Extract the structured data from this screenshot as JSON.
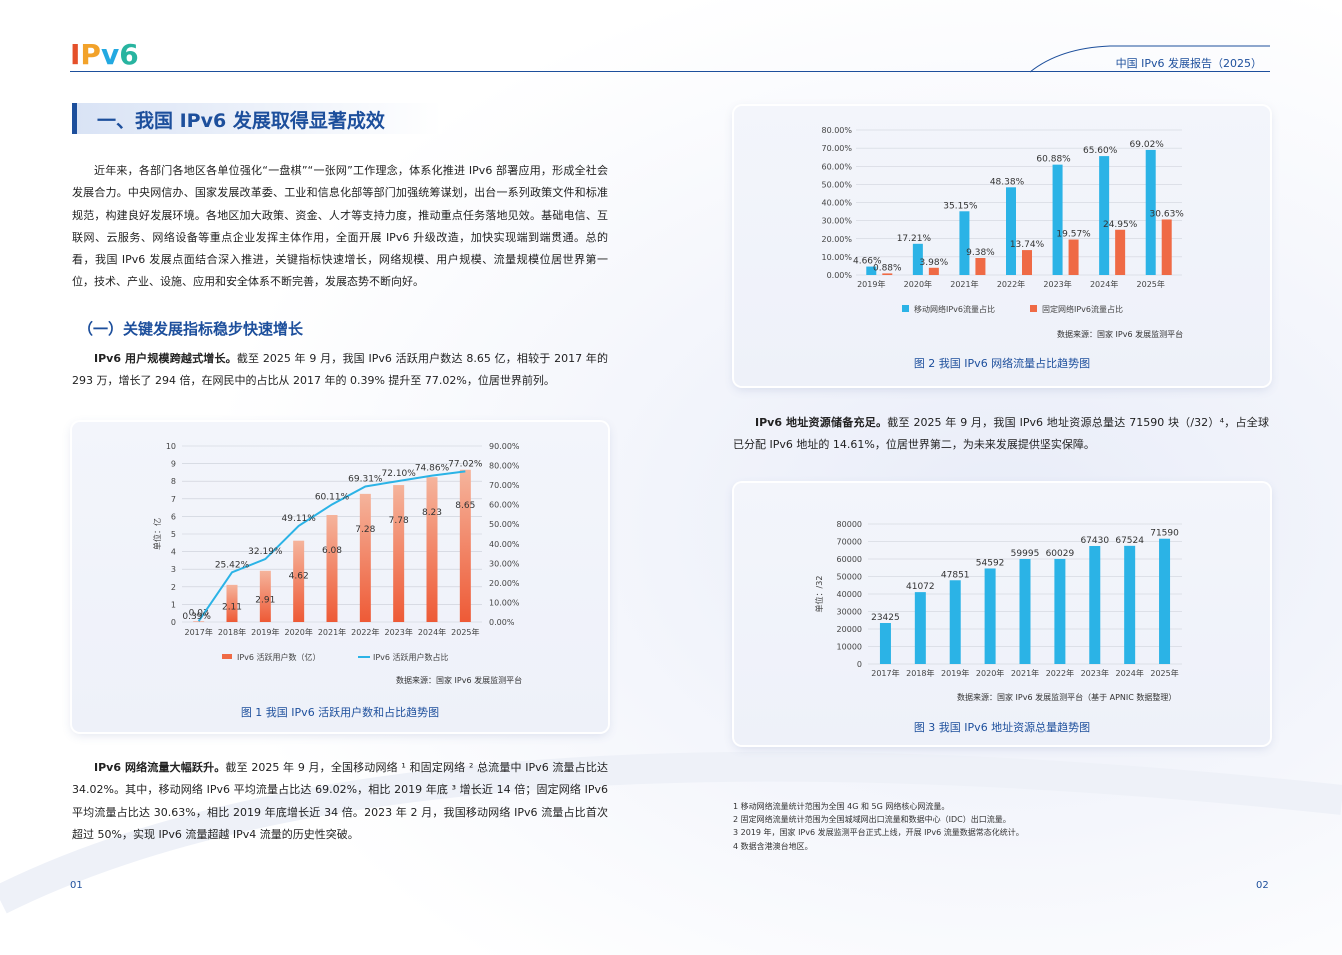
{
  "header": {
    "logo": [
      "I",
      "P",
      "v",
      "6"
    ],
    "report_title": "中国 IPv6 发展报告（2025）"
  },
  "section": {
    "title": "一、我国 IPv6 发展取得显著成效"
  },
  "intro": "近年来，各部门各地区各单位强化“一盘棋”“一张网”工作理念，体系化推进 IPv6 部署应用，形成全社会发展合力。中央网信办、国家发展改革委、工业和信息化部等部门加强统筹谋划，出台一系列政策文件和标准规范，构建良好发展环境。各地区加大政策、资金、人才等支持力度，推动重点任务落地见效。基础电信、互联网、云服务、网络设备等重点企业发挥主体作用，全面开展 IPv6 升级改造，加快实现端到端贯通。总的看，我国 IPv6 发展点面结合深入推进，关键指标快速增长，网络规模、用户规模、流量规模位居世界第一位，技术、产业、设施、应用和安全体系不断完善，发展态势不断向好。",
  "subsection": {
    "title": "（一）关键发展指标稳步快速增长"
  },
  "para_users": {
    "lead": "IPv6 用户规模跨越式增长。",
    "text": "截至 2025 年 9 月，我国 IPv6 活跃用户数达 8.65 亿，相较于 2017 年的 293 万，增长了 294 倍，在网民中的占比从 2017 年的 0.39% 提升至 77.02%，位居世界前列。"
  },
  "para_traffic": {
    "lead": "IPv6 网络流量大幅跃升。",
    "text": "截至 2025 年 9 月，全国移动网络 ¹ 和固定网络 ² 总流量中 IPv6 流量占比达 34.02%。其中，移动网络 IPv6 平均流量占比达 69.02%，相比 2019 年底 ³ 增长近 14 倍；固定网络 IPv6 平均流量占比达 30.63%，相比 2019 年底增长近 34 倍。2023 年 2 月，我国移动网络 IPv6 流量占比首次超过 50%，实现 IPv6 流量超越 IPv4 流量的历史性突破。"
  },
  "para_address": {
    "lead": "IPv6 地址资源储备充足。",
    "text": "截至 2025 年 9 月，我国 IPv6 地址资源总量达 71590 块（/32）⁴，占全球已分配 IPv6 地址的 14.61%，位居世界第二，为未来发展提供坚实保障。"
  },
  "fig1": {
    "caption": "图 1 我国 IPv6 活跃用户数和占比趋势图",
    "source": "数据来源：国家 IPv6 发展监测平台",
    "ylabel": "单位：亿",
    "legend": [
      "IPv6 活跃用户数（亿）",
      "IPv6 活跃用户数占比"
    ]
  },
  "fig2": {
    "caption": "图 2 我国 IPv6 网络流量占比趋势图",
    "source": "数据来源：国家 IPv6 发展监测平台",
    "legend": [
      "移动网络IPv6流量占比",
      "固定网络IPv6流量占比"
    ]
  },
  "fig3": {
    "caption": "图 3 我国 IPv6 地址资源总量趋势图",
    "source": "数据来源：国家 IPv6 发展监测平台（基于 APNIC 数据整理）",
    "ylabel": "单位：/32"
  },
  "chart_data": [
    {
      "type": "bar",
      "categories": [
        "2017年",
        "2018年",
        "2019年",
        "2020年",
        "2021年",
        "2022年",
        "2023年",
        "2024年",
        "2025年"
      ],
      "series": [
        {
          "name": "IPv6 活跃用户数（亿）",
          "values": [
            0.03,
            2.11,
            2.91,
            4.62,
            6.08,
            7.28,
            7.78,
            8.23,
            8.65
          ],
          "labels": [
            "0.03",
            "2.11",
            "2.91",
            "4.62",
            "6.08",
            "7.28",
            "7.78",
            "8.23",
            "8.65"
          ],
          "color": "#ef6a45"
        },
        {
          "name": "IPv6 活跃用户数占比",
          "type": "line",
          "axis": "right",
          "values": [
            0.39,
            25.42,
            32.19,
            49.11,
            60.11,
            69.31,
            72.1,
            74.86,
            77.02
          ],
          "labels": [
            "0.39%",
            "25.42%",
            "32.19%",
            "49.11%",
            "60.11%",
            "69.31%",
            "72.10%",
            "74.86%",
            "77.02%"
          ],
          "color": "#2bb3e6"
        }
      ],
      "ylim": [
        0,
        10
      ],
      "yticks": [
        "0",
        "1",
        "2",
        "3",
        "4",
        "5",
        "6",
        "7",
        "8",
        "9",
        "10"
      ],
      "y2lim": [
        0,
        90
      ],
      "y2ticks": [
        "0.00%",
        "10.00%",
        "20.00%",
        "30.00%",
        "40.00%",
        "50.00%",
        "60.00%",
        "70.00%",
        "80.00%",
        "90.00%"
      ],
      "ylabel": "单位：亿",
      "legend_position": "bottom"
    },
    {
      "type": "bar",
      "categories": [
        "2019年",
        "2020年",
        "2021年",
        "2022年",
        "2023年",
        "2024年",
        "2025年"
      ],
      "series": [
        {
          "name": "移动网络IPv6流量占比",
          "values": [
            4.66,
            17.21,
            35.15,
            48.38,
            60.88,
            65.6,
            69.02
          ],
          "labels": [
            "4.66%",
            "17.21%",
            "35.15%",
            "48.38%",
            "60.88%",
            "65.60%",
            "69.02%"
          ],
          "color": "#2bb3e6"
        },
        {
          "name": "固定网络IPv6流量占比",
          "values": [
            0.88,
            3.98,
            9.38,
            13.74,
            19.57,
            24.95,
            30.63
          ],
          "labels": [
            "0.88%",
            "3.98%",
            "9.38%",
            "13.74%",
            "19.57%",
            "24.95%",
            "30.63%"
          ],
          "color": "#ef6a45"
        }
      ],
      "ylim": [
        0,
        80
      ],
      "yticks": [
        "0.00%",
        "10.00%",
        "20.00%",
        "30.00%",
        "40.00%",
        "50.00%",
        "60.00%",
        "70.00%",
        "80.00%"
      ],
      "legend_position": "bottom"
    },
    {
      "type": "bar",
      "categories": [
        "2017年",
        "2018年",
        "2019年",
        "2020年",
        "2021年",
        "2022年",
        "2023年",
        "2024年",
        "2025年"
      ],
      "values": [
        23425,
        41072,
        47851,
        54592,
        59995,
        60029,
        67430,
        67524,
        71590
      ],
      "labels": [
        "23425",
        "41072",
        "47851",
        "54592",
        "59995",
        "60029",
        "67430",
        "67524",
        "71590"
      ],
      "color": "#2bb3e6",
      "ylim": [
        0,
        80000
      ],
      "yticks": [
        "0",
        "10000",
        "20000",
        "30000",
        "40000",
        "50000",
        "60000",
        "70000",
        "80000"
      ],
      "ylabel": "单位：/32"
    }
  ],
  "footnotes": [
    "1 移动网络流量统计范围为全国 4G 和 5G 网络核心网流量。",
    "2 固定网络流量统计范围为全国城域网出口流量和数据中心（IDC）出口流量。",
    "3 2019 年，国家 IPv6 发展监测平台正式上线，开展 IPv6 流量数据常态化统计。",
    "4 数据含港澳台地区。"
  ],
  "pages": {
    "left": "01",
    "right": "02"
  }
}
